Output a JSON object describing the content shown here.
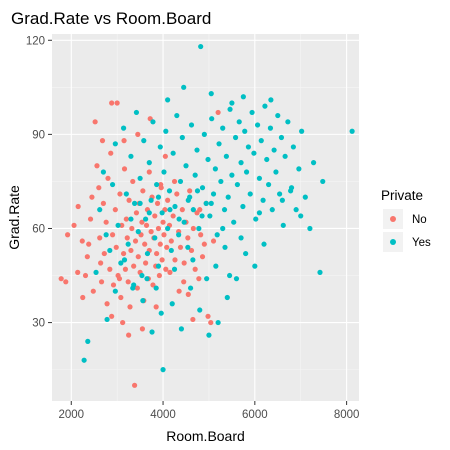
{
  "chart_data": {
    "type": "scatter",
    "title": "Grad.Rate vs Room.Board",
    "xlabel": "Room.Board",
    "ylabel": "Grad.Rate",
    "xlim": [
      1580,
      8270
    ],
    "ylim": [
      5,
      122
    ],
    "xticks": [
      2000,
      4000,
      6000,
      8000
    ],
    "yticks": [
      30,
      60,
      90,
      120
    ],
    "grid": true,
    "legend": {
      "title": "Private",
      "position": "right"
    },
    "series": [
      {
        "name": "No",
        "color": "#F8766D",
        "points": [
          [
            1780,
            44
          ],
          [
            1880,
            43
          ],
          [
            1920,
            58
          ],
          [
            2060,
            61
          ],
          [
            2140,
            46
          ],
          [
            2240,
            56
          ],
          [
            2310,
            45
          ],
          [
            2380,
            55
          ],
          [
            2420,
            63
          ],
          [
            2480,
            40
          ],
          [
            2520,
            94
          ],
          [
            2560,
            80
          ],
          [
            2600,
            73
          ],
          [
            2620,
            57
          ],
          [
            2640,
            49
          ],
          [
            2660,
            43
          ],
          [
            2700,
            68
          ],
          [
            2720,
            52
          ],
          [
            2760,
            62
          ],
          [
            2780,
            36
          ],
          [
            2800,
            76
          ],
          [
            2840,
            47
          ],
          [
            2860,
            84
          ],
          [
            2880,
            100
          ],
          [
            2900,
            58
          ],
          [
            2920,
            42
          ],
          [
            2960,
            66
          ],
          [
            2980,
            54
          ],
          [
            3000,
            100
          ],
          [
            3020,
            45
          ],
          [
            3060,
            71
          ],
          [
            3080,
            38
          ],
          [
            3100,
            61
          ],
          [
            3120,
            30
          ],
          [
            3140,
            52
          ],
          [
            3160,
            79
          ],
          [
            3180,
            47
          ],
          [
            3200,
            63
          ],
          [
            3220,
            57
          ],
          [
            3240,
            43
          ],
          [
            3260,
            69
          ],
          [
            3280,
            35
          ],
          [
            3300,
            53
          ],
          [
            3320,
            60
          ],
          [
            3340,
            75
          ],
          [
            3360,
            48
          ],
          [
            3380,
            10
          ],
          [
            3400,
            56
          ],
          [
            3420,
            65
          ],
          [
            3440,
            41
          ],
          [
            3460,
            51
          ],
          [
            3480,
            68
          ],
          [
            3500,
            46
          ],
          [
            3520,
            58
          ],
          [
            3540,
            62
          ],
          [
            3560,
            72
          ],
          [
            3580,
            37
          ],
          [
            3600,
            55
          ],
          [
            3620,
            49
          ],
          [
            3640,
            61
          ],
          [
            3660,
            66
          ],
          [
            3680,
            44
          ],
          [
            3700,
            53
          ],
          [
            3720,
            95
          ],
          [
            3740,
            59
          ],
          [
            3760,
            70
          ],
          [
            3780,
            42
          ],
          [
            3800,
            57
          ],
          [
            3820,
            64
          ],
          [
            3840,
            48
          ],
          [
            3860,
            52
          ],
          [
            3880,
            68
          ],
          [
            3900,
            60
          ],
          [
            3920,
            45
          ],
          [
            3940,
            55
          ],
          [
            3960,
            73
          ],
          [
            3980,
            50
          ],
          [
            4000,
            62
          ],
          [
            4020,
            58
          ],
          [
            4040,
            66
          ],
          [
            4060,
            47
          ],
          [
            4080,
            54
          ],
          [
            4100,
            69
          ],
          [
            4140,
            61
          ],
          [
            4180,
            56
          ],
          [
            4220,
            64
          ],
          [
            4260,
            50
          ],
          [
            4300,
            71
          ],
          [
            4340,
            59
          ],
          [
            4380,
            54
          ],
          [
            4420,
            66
          ],
          [
            4460,
            49
          ],
          [
            4500,
            62
          ],
          [
            4540,
            57
          ],
          [
            4580,
            72
          ],
          [
            4620,
            53
          ],
          [
            4660,
            60
          ],
          [
            4700,
            47
          ],
          [
            4740,
            65
          ],
          [
            4780,
            44
          ],
          [
            4820,
            58
          ],
          [
            4860,
            51
          ],
          [
            4900,
            55
          ],
          [
            4940,
            68
          ],
          [
            4980,
            32
          ],
          [
            5040,
            30
          ],
          [
            5100,
            56
          ],
          [
            5200,
            97
          ],
          [
            2450,
            70
          ],
          [
            2350,
            51
          ],
          [
            2150,
            67
          ],
          [
            2680,
            88
          ],
          [
            3150,
            88
          ],
          [
            3050,
            44
          ],
          [
            3450,
            90
          ],
          [
            3700,
            78
          ],
          [
            3950,
            74
          ],
          [
            4250,
            75
          ],
          [
            4450,
            43
          ],
          [
            4650,
            31
          ],
          [
            4050,
            83
          ],
          [
            2250,
            38
          ],
          [
            3850,
            35
          ],
          [
            4350,
            40
          ],
          [
            3550,
            28
          ],
          [
            3250,
            26
          ],
          [
            2880,
            32
          ],
          [
            4150,
            46
          ],
          [
            4550,
            39
          ],
          [
            4800,
            66
          ]
        ]
      },
      {
        "name": "Yes",
        "color": "#00BFC4",
        "points": [
          [
            2280,
            18
          ],
          [
            2360,
            24
          ],
          [
            2540,
            46
          ],
          [
            2620,
            66
          ],
          [
            2700,
            78
          ],
          [
            2780,
            31
          ],
          [
            2840,
            53
          ],
          [
            2900,
            74
          ],
          [
            2960,
            87
          ],
          [
            3020,
            61
          ],
          [
            3080,
            49
          ],
          [
            3140,
            92
          ],
          [
            3200,
            71
          ],
          [
            3240,
            55
          ],
          [
            3300,
            83
          ],
          [
            3340,
            41
          ],
          [
            3380,
            68
          ],
          [
            3420,
            97
          ],
          [
            3460,
            59
          ],
          [
            3500,
            76
          ],
          [
            3540,
            45
          ],
          [
            3580,
            88
          ],
          [
            3620,
            63
          ],
          [
            3660,
            52
          ],
          [
            3700,
            81
          ],
          [
            3740,
            69
          ],
          [
            3780,
            94
          ],
          [
            3820,
            57
          ],
          [
            3860,
            74
          ],
          [
            3900,
            48
          ],
          [
            3940,
            86
          ],
          [
            3980,
            65
          ],
          [
            4000,
            15
          ],
          [
            4020,
            78
          ],
          [
            4060,
            91
          ],
          [
            4100,
            60
          ],
          [
            4140,
            72
          ],
          [
            4180,
            53
          ],
          [
            4220,
            84
          ],
          [
            4260,
            67
          ],
          [
            4300,
            96
          ],
          [
            4340,
            58
          ],
          [
            4380,
            75
          ],
          [
            4420,
            89
          ],
          [
            4460,
            62
          ],
          [
            4500,
            80
          ],
          [
            4540,
            54
          ],
          [
            4580,
            70
          ],
          [
            4620,
            93
          ],
          [
            4660,
            66
          ],
          [
            4700,
            77
          ],
          [
            4740,
            85
          ],
          [
            4780,
            60
          ],
          [
            4820,
            118
          ],
          [
            4860,
            73
          ],
          [
            4900,
            90
          ],
          [
            4940,
            68
          ],
          [
            4980,
            82
          ],
          [
            5020,
            64
          ],
          [
            5060,
            95
          ],
          [
            5100,
            71
          ],
          [
            5140,
            79
          ],
          [
            5180,
            58
          ],
          [
            5220,
            87
          ],
          [
            5260,
            75
          ],
          [
            5300,
            92
          ],
          [
            5340,
            66
          ],
          [
            5380,
            83
          ],
          [
            5420,
            70
          ],
          [
            5460,
            98
          ],
          [
            5500,
            77
          ],
          [
            5540,
            62
          ],
          [
            5580,
            89
          ],
          [
            5620,
            74
          ],
          [
            5660,
            94
          ],
          [
            5700,
            81
          ],
          [
            5740,
            67
          ],
          [
            5780,
            91
          ],
          [
            5820,
            78
          ],
          [
            5860,
            86
          ],
          [
            5900,
            71
          ],
          [
            5940,
            97
          ],
          [
            5980,
            84
          ],
          [
            6020,
            63
          ],
          [
            6060,
            93
          ],
          [
            6100,
            76
          ],
          [
            6140,
            88
          ],
          [
            6180,
            69
          ],
          [
            6220,
            99
          ],
          [
            6260,
            82
          ],
          [
            6300,
            74
          ],
          [
            6340,
            92
          ],
          [
            6380,
            66
          ],
          [
            6420,
            85
          ],
          [
            6460,
            78
          ],
          [
            6500,
            96
          ],
          [
            6540,
            71
          ],
          [
            6580,
            89
          ],
          [
            6620,
            61
          ],
          [
            6660,
            83
          ],
          [
            6720,
            94
          ],
          [
            6780,
            72
          ],
          [
            6840,
            86
          ],
          [
            6900,
            66
          ],
          [
            6960,
            79
          ],
          [
            7020,
            91
          ],
          [
            7100,
            70
          ],
          [
            7200,
            60
          ],
          [
            7280,
            81
          ],
          [
            7420,
            46
          ],
          [
            8120,
            91
          ],
          [
            7480,
            75
          ],
          [
            6200,
            55
          ],
          [
            6000,
            48
          ],
          [
            5800,
            52
          ],
          [
            5600,
            44
          ],
          [
            5400,
            38
          ],
          [
            5200,
            30
          ],
          [
            5000,
            26
          ],
          [
            4800,
            34
          ],
          [
            4600,
            41
          ],
          [
            4400,
            28
          ],
          [
            4200,
            36
          ],
          [
            3960,
            33
          ],
          [
            3760,
            27
          ],
          [
            3560,
            37
          ],
          [
            3360,
            42
          ],
          [
            3160,
            50
          ],
          [
            2960,
            40
          ],
          [
            2760,
            58
          ],
          [
            4100,
            101
          ],
          [
            4450,
            105
          ],
          [
            5050,
            103
          ],
          [
            5500,
            100
          ],
          [
            5750,
            102
          ],
          [
            6350,
            101
          ],
          [
            5300,
            60
          ],
          [
            5700,
            57
          ],
          [
            6100,
            65
          ],
          [
            6600,
            69
          ],
          [
            6800,
            73
          ],
          [
            7000,
            64
          ],
          [
            3650,
            44
          ],
          [
            3850,
            41
          ],
          [
            4250,
            47
          ],
          [
            4650,
            50
          ],
          [
            4950,
            44
          ],
          [
            5150,
            48
          ],
          [
            5350,
            54
          ],
          [
            5450,
            45
          ],
          [
            3300,
            63
          ],
          [
            3500,
            68
          ],
          [
            3700,
            65
          ],
          [
            3900,
            70
          ],
          [
            4150,
            66
          ],
          [
            4350,
            63
          ],
          [
            4550,
            69
          ],
          [
            4750,
            72
          ],
          [
            4850,
            64
          ],
          [
            5050,
            68
          ]
        ]
      }
    ]
  }
}
